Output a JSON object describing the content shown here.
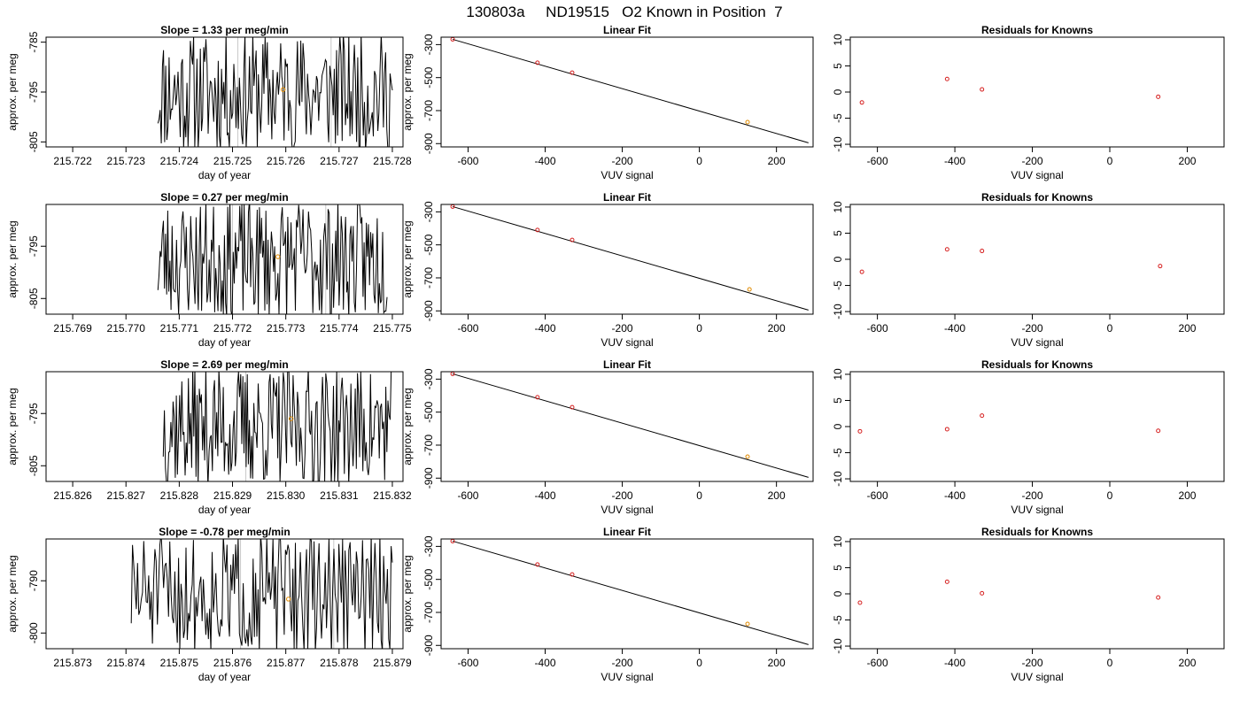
{
  "page_title": "130803a     ND19515   O2 Known in Position  7",
  "rows": [
    {
      "time": {
        "title": "Slope =  1.33  per meg/min",
        "xlabel": "day of year",
        "ylabel": "approx. per meg",
        "xlim": [
          215.7215,
          215.7282
        ],
        "ylim": [
          -806,
          -784
        ],
        "xticks": [
          "215.722",
          "215.723",
          "215.724",
          "215.725",
          "215.726",
          "215.727",
          "215.728"
        ],
        "yticks": [
          "-785",
          "-795",
          "-805"
        ],
        "vlines": [
          215.7251,
          215.72685
        ],
        "marker": {
          "x": 215.72595,
          "y": -794.5
        },
        "start": 215.7236,
        "end": 215.728,
        "seed": 11
      },
      "fit": {
        "title": "Linear Fit",
        "xlabel": "VUV signal",
        "ylabel": "approx. per meg",
        "xlim": [
          -670,
          295
        ],
        "ylim": [
          -920,
          -255
        ],
        "xticks": [
          "-600",
          "-400",
          "-200",
          "0",
          "200"
        ],
        "yticks": [
          "-300",
          "-500",
          "-700",
          "-900"
        ],
        "points": [
          [
            -640,
            -268
          ],
          [
            -420,
            -410
          ],
          [
            -330,
            -470
          ],
          [
            125,
            -770
          ]
        ],
        "line": [
          [
            -640,
            -268
          ],
          [
            283,
            -895
          ]
        ]
      },
      "resid": {
        "title": "Residuals for Knowns",
        "xlabel": "VUV signal",
        "xlim": [
          -670,
          295
        ],
        "ylim": [
          -10.5,
          10.5
        ],
        "xticks": [
          "-600",
          "-400",
          "-200",
          "0",
          "200"
        ],
        "yticks": [
          "10",
          "5",
          "0",
          "-5",
          "-10"
        ],
        "points": [
          [
            -640,
            -2.0
          ],
          [
            -420,
            2.5
          ],
          [
            -330,
            0.5
          ],
          [
            125,
            -0.9
          ]
        ]
      }
    },
    {
      "time": {
        "title": "Slope =  0.27  per meg/min",
        "xlabel": "day of year",
        "ylabel": "approx. per meg",
        "xlim": [
          215.7685,
          215.7752
        ],
        "ylim": [
          -808,
          -787
        ],
        "xticks": [
          "215.769",
          "215.770",
          "215.771",
          "215.772",
          "215.773",
          "215.774",
          "215.775"
        ],
        "yticks": [
          "-795",
          "-805"
        ],
        "vlines": [
          215.772,
          215.77375
        ],
        "marker": {
          "x": 215.77285,
          "y": -797
        },
        "start": 215.7706,
        "end": 215.7749,
        "seed": 23
      },
      "fit": {
        "title": "Linear Fit",
        "xlabel": "VUV signal",
        "ylabel": "approx. per meg",
        "xlim": [
          -670,
          295
        ],
        "ylim": [
          -920,
          -255
        ],
        "xticks": [
          "-600",
          "-400",
          "-200",
          "0",
          "200"
        ],
        "yticks": [
          "-300",
          "-500",
          "-700",
          "-900"
        ],
        "points": [
          [
            -640,
            -268
          ],
          [
            -420,
            -410
          ],
          [
            -330,
            -470
          ],
          [
            130,
            -770
          ]
        ],
        "line": [
          [
            -640,
            -268
          ],
          [
            283,
            -895
          ]
        ]
      },
      "resid": {
        "title": "Residuals for Knowns",
        "xlabel": "VUV signal",
        "xlim": [
          -670,
          295
        ],
        "ylim": [
          -10.5,
          10.5
        ],
        "xticks": [
          "-600",
          "-400",
          "-200",
          "0",
          "200"
        ],
        "yticks": [
          "10",
          "5",
          "0",
          "-5",
          "-10"
        ],
        "points": [
          [
            -640,
            -2.4
          ],
          [
            -420,
            1.9
          ],
          [
            -330,
            1.6
          ],
          [
            130,
            -1.3
          ]
        ]
      }
    },
    {
      "time": {
        "title": "Slope =  2.69  per meg/min",
        "xlabel": "day of year",
        "ylabel": "approx. per meg",
        "xlim": [
          215.8255,
          215.8322
        ],
        "ylim": [
          -808,
          -787
        ],
        "xticks": [
          "215.826",
          "215.827",
          "215.828",
          "215.829",
          "215.830",
          "215.831",
          "215.832"
        ],
        "yticks": [
          "-795",
          "-805"
        ],
        "vlines": [
          215.82925,
          215.831
        ],
        "marker": {
          "x": 215.8301,
          "y": -796
        },
        "start": 215.8277,
        "end": 215.832,
        "seed": 37
      },
      "fit": {
        "title": "Linear Fit",
        "xlabel": "VUV signal",
        "ylabel": "approx. per meg",
        "xlim": [
          -670,
          295
        ],
        "ylim": [
          -920,
          -255
        ],
        "xticks": [
          "-600",
          "-400",
          "-200",
          "0",
          "200"
        ],
        "yticks": [
          "-300",
          "-500",
          "-700",
          "-900"
        ],
        "points": [
          [
            -640,
            -268
          ],
          [
            -420,
            -410
          ],
          [
            -330,
            -470
          ],
          [
            125,
            -770
          ]
        ],
        "line": [
          [
            -640,
            -268
          ],
          [
            283,
            -895
          ]
        ]
      },
      "resid": {
        "title": "Residuals for Knowns",
        "xlabel": "VUV signal",
        "xlim": [
          -670,
          295
        ],
        "ylim": [
          -10.5,
          10.5
        ],
        "xticks": [
          "-600",
          "-400",
          "-200",
          "0",
          "200"
        ],
        "yticks": [
          "10",
          "5",
          "0",
          "-5",
          "-10"
        ],
        "points": [
          [
            -645,
            -0.9
          ],
          [
            -420,
            -0.5
          ],
          [
            -330,
            2.1
          ],
          [
            125,
            -0.8
          ]
        ]
      }
    },
    {
      "time": {
        "title": "Slope =  -0.78  per meg/min",
        "xlabel": "day of year",
        "ylabel": "approx. per meg",
        "xlim": [
          215.8725,
          215.8792
        ],
        "ylim": [
          -803,
          -782
        ],
        "xticks": [
          "215.873",
          "215.874",
          "215.875",
          "215.876",
          "215.877",
          "215.878",
          "215.879"
        ],
        "yticks": [
          "-790",
          "-800"
        ],
        "vlines": [
          215.87615,
          215.8779
        ],
        "marker": {
          "x": 215.87705,
          "y": -793.5
        },
        "start": 215.8741,
        "end": 215.879,
        "seed": 51
      },
      "fit": {
        "title": "Linear Fit",
        "xlabel": "VUV signal",
        "ylabel": "approx. per meg",
        "xlim": [
          -670,
          295
        ],
        "ylim": [
          -920,
          -255
        ],
        "xticks": [
          "-600",
          "-400",
          "-200",
          "0",
          "200"
        ],
        "yticks": [
          "-300",
          "-500",
          "-700",
          "-900"
        ],
        "points": [
          [
            -640,
            -268
          ],
          [
            -420,
            -410
          ],
          [
            -330,
            -470
          ],
          [
            125,
            -770
          ]
        ],
        "line": [
          [
            -640,
            -268
          ],
          [
            283,
            -895
          ]
        ]
      },
      "resid": {
        "title": "Residuals for Knowns",
        "xlabel": "VUV signal",
        "xlim": [
          -670,
          295
        ],
        "ylim": [
          -10.5,
          10.5
        ],
        "xticks": [
          "-600",
          "-400",
          "-200",
          "0",
          "200"
        ],
        "yticks": [
          "10",
          "5",
          "0",
          "-5",
          "-10"
        ],
        "points": [
          [
            -645,
            -1.7
          ],
          [
            -420,
            2.3
          ],
          [
            -330,
            0.1
          ],
          [
            125,
            -0.7
          ]
        ]
      }
    }
  ],
  "colors": {
    "point": "#d62020",
    "known": "#e08a00",
    "vline": "#c8c8c8",
    "line": "#000000"
  },
  "chart_data": [
    {
      "type": "line",
      "title": "Slope =  1.33  per meg/min",
      "xlabel": "day of year",
      "ylabel": "approx. per meg",
      "xlim": [
        215.7215,
        215.7282
      ],
      "ylim": [
        -806,
        -784
      ]
    },
    {
      "type": "scatter",
      "title": "Linear Fit",
      "xlabel": "VUV signal",
      "ylabel": "approx. per meg",
      "x": [
        -640,
        -420,
        -330,
        125
      ],
      "y": [
        -268,
        -410,
        -470,
        -770
      ]
    },
    {
      "type": "scatter",
      "title": "Residuals for Knowns",
      "xlabel": "VUV signal",
      "x": [
        -640,
        -420,
        -330,
        125
      ],
      "y": [
        -2.0,
        2.5,
        0.5,
        -0.9
      ]
    },
    {
      "type": "line",
      "title": "Slope =  0.27  per meg/min",
      "xlabel": "day of year",
      "ylabel": "approx. per meg",
      "xlim": [
        215.7685,
        215.7752
      ],
      "ylim": [
        -808,
        -787
      ]
    },
    {
      "type": "scatter",
      "title": "Linear Fit",
      "xlabel": "VUV signal",
      "ylabel": "approx. per meg",
      "x": [
        -640,
        -420,
        -330,
        130
      ],
      "y": [
        -268,
        -410,
        -470,
        -770
      ]
    },
    {
      "type": "scatter",
      "title": "Residuals for Knowns",
      "xlabel": "VUV signal",
      "x": [
        -640,
        -420,
        -330,
        130
      ],
      "y": [
        -2.4,
        1.9,
        1.6,
        -1.3
      ]
    },
    {
      "type": "line",
      "title": "Slope =  2.69  per meg/min",
      "xlabel": "day of year",
      "ylabel": "approx. per meg",
      "xlim": [
        215.8255,
        215.8322
      ],
      "ylim": [
        -808,
        -787
      ]
    },
    {
      "type": "scatter",
      "title": "Linear Fit",
      "xlabel": "VUV signal",
      "ylabel": "approx. per meg",
      "x": [
        -640,
        -420,
        -330,
        125
      ],
      "y": [
        -268,
        -410,
        -470,
        -770
      ]
    },
    {
      "type": "scatter",
      "title": "Residuals for Knowns",
      "xlabel": "VUV signal",
      "x": [
        -645,
        -420,
        -330,
        125
      ],
      "y": [
        -0.9,
        -0.5,
        2.1,
        -0.8
      ]
    },
    {
      "type": "line",
      "title": "Slope =  -0.78  per meg/min",
      "xlabel": "day of year",
      "ylabel": "approx. per meg",
      "xlim": [
        215.8725,
        215.8792
      ],
      "ylim": [
        -803,
        -782
      ]
    },
    {
      "type": "scatter",
      "title": "Linear Fit",
      "xlabel": "VUV signal",
      "ylabel": "approx. per meg",
      "x": [
        -640,
        -420,
        -330,
        125
      ],
      "y": [
        -268,
        -410,
        -470,
        -770
      ]
    },
    {
      "type": "scatter",
      "title": "Residuals for Knowns",
      "xlabel": "VUV signal",
      "x": [
        -645,
        -420,
        -330,
        125
      ],
      "y": [
        -1.7,
        2.3,
        0.1,
        -0.7
      ]
    }
  ]
}
